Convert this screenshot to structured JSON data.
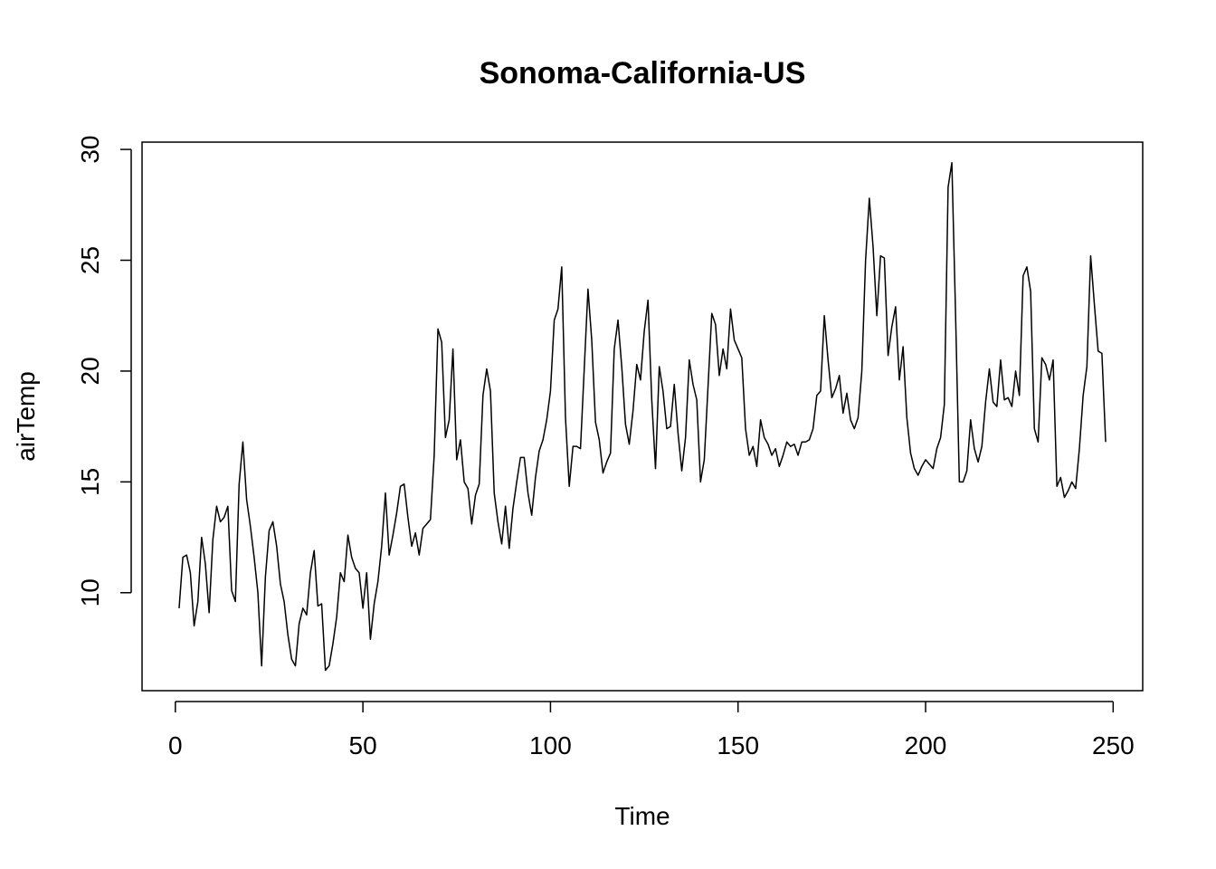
{
  "chart_data": {
    "type": "line",
    "title": "Sonoma-California-US",
    "x_label": "Time",
    "y_label": "airTemp",
    "x": [
      1,
      2,
      3,
      4,
      5,
      6,
      7,
      8,
      9,
      10,
      11,
      12,
      13,
      14,
      15,
      16,
      17,
      18,
      19,
      20,
      21,
      22,
      23,
      24,
      25,
      26,
      27,
      28,
      29,
      30,
      31,
      32,
      33,
      34,
      35,
      36,
      37,
      38,
      39,
      40,
      41,
      42,
      43,
      44,
      45,
      46,
      47,
      48,
      49,
      50,
      51,
      52,
      53,
      54,
      55,
      56,
      57,
      58,
      59,
      60,
      61,
      62,
      63,
      64,
      65,
      66,
      67,
      68,
      69,
      70,
      71,
      72,
      73,
      74,
      75,
      76,
      77,
      78,
      79,
      80,
      81,
      82,
      83,
      84,
      85,
      86,
      87,
      88,
      89,
      90,
      91,
      92,
      93,
      94,
      95,
      96,
      97,
      98,
      99,
      100,
      101,
      102,
      103,
      104,
      105,
      106,
      107,
      108,
      109,
      110,
      111,
      112,
      113,
      114,
      115,
      116,
      117,
      118,
      119,
      120,
      121,
      122,
      123,
      124,
      125,
      126,
      127,
      128,
      129,
      130,
      131,
      132,
      133,
      134,
      135,
      136,
      137,
      138,
      139,
      140,
      141,
      142,
      143,
      144,
      145,
      146,
      147,
      148,
      149,
      150,
      151,
      152,
      153,
      154,
      155,
      156,
      157,
      158,
      159,
      160,
      161,
      162,
      163,
      164,
      165,
      166,
      167,
      168,
      169,
      170,
      171,
      172,
      173,
      174,
      175,
      176,
      177,
      178,
      179,
      180,
      181,
      182,
      183,
      184,
      185,
      186,
      187,
      188,
      189,
      190,
      191,
      192,
      193,
      194,
      195,
      196,
      197,
      198,
      199,
      200,
      201,
      202,
      203,
      204,
      205,
      206,
      207,
      208,
      209,
      210,
      211,
      212,
      213,
      214,
      215,
      216,
      217,
      218,
      219,
      220,
      221,
      222,
      223,
      224,
      225,
      226,
      227,
      228,
      229,
      230,
      231,
      232,
      233,
      234,
      235,
      236,
      237,
      238,
      239,
      240,
      241,
      242,
      243,
      244,
      245,
      246,
      247,
      248
    ],
    "series": [
      {
        "name": "airTemp",
        "color": "#000000",
        "values": [
          9.3,
          11.6,
          11.7,
          10.9,
          8.5,
          9.6,
          12.5,
          11.3,
          9.1,
          12.4,
          13.9,
          13.2,
          13.4,
          13.9,
          10.1,
          9.6,
          14.9,
          16.8,
          14.2,
          13.0,
          11.6,
          10.0,
          6.7,
          10.7,
          12.8,
          13.2,
          12.1,
          10.4,
          9.6,
          8.1,
          7.0,
          6.7,
          8.6,
          9.3,
          9.0,
          10.9,
          11.9,
          9.4,
          9.5,
          6.5,
          6.7,
          7.7,
          8.9,
          10.9,
          10.5,
          12.6,
          11.6,
          11.1,
          10.9,
          9.3,
          10.9,
          7.9,
          9.5,
          10.5,
          12.1,
          14.5,
          11.7,
          12.6,
          13.6,
          14.8,
          14.9,
          13.4,
          12.1,
          12.7,
          11.7,
          12.9,
          13.1,
          13.3,
          16.2,
          21.9,
          21.3,
          17.0,
          17.8,
          21.0,
          16.0,
          16.9,
          15.0,
          14.7,
          13.1,
          14.4,
          14.9,
          18.9,
          20.1,
          19.1,
          14.5,
          13.2,
          12.2,
          13.9,
          12.0,
          13.8,
          15.0,
          16.1,
          16.1,
          14.5,
          13.5,
          15.2,
          16.4,
          16.9,
          17.8,
          19.1,
          22.3,
          22.8,
          24.7,
          17.9,
          14.8,
          16.6,
          16.6,
          16.5,
          20.1,
          23.7,
          21.4,
          17.7,
          16.9,
          15.4,
          15.9,
          16.3,
          21.0,
          22.3,
          20.2,
          17.6,
          16.7,
          18.2,
          20.3,
          19.6,
          21.8,
          23.2,
          18.7,
          15.6,
          20.2,
          19.1,
          17.4,
          17.5,
          19.4,
          17.2,
          15.5,
          17.0,
          20.5,
          19.4,
          18.7,
          15.0,
          16.0,
          19.3,
          22.6,
          22.1,
          19.8,
          21.0,
          20.1,
          22.8,
          21.4,
          21.0,
          20.6,
          17.4,
          16.2,
          16.6,
          15.7,
          17.8,
          17.0,
          16.7,
          16.2,
          16.5,
          15.7,
          16.2,
          16.8,
          16.6,
          16.7,
          16.2,
          16.8,
          16.8,
          16.9,
          17.4,
          18.9,
          19.1,
          22.5,
          20.5,
          18.8,
          19.2,
          19.8,
          18.1,
          19.0,
          17.8,
          17.4,
          17.9,
          20.0,
          25.0,
          27.8,
          25.6,
          22.5,
          25.2,
          25.1,
          20.7,
          22.0,
          22.9,
          19.6,
          21.1,
          17.9,
          16.3,
          15.6,
          15.3,
          15.7,
          16.0,
          15.8,
          15.6,
          16.5,
          17.0,
          18.5,
          28.3,
          29.4,
          22.5,
          15.0,
          15.0,
          15.5,
          17.8,
          16.5,
          15.9,
          16.6,
          18.6,
          20.1,
          18.6,
          18.4,
          20.5,
          18.7,
          18.8,
          18.4,
          20.0,
          18.9,
          24.3,
          24.7,
          23.6,
          17.4,
          16.8,
          20.6,
          20.3,
          19.6,
          20.5,
          14.8,
          15.2,
          14.3,
          14.6,
          15.0,
          14.7,
          16.5,
          18.9,
          20.2,
          25.2,
          23.0,
          20.9,
          20.8,
          16.8
        ]
      }
    ],
    "xlim": [
      -8.88,
      257.88
    ],
    "ylim": [
      5.58,
      30.33
    ],
    "xticks": [
      0,
      50,
      100,
      150,
      200,
      250
    ],
    "yticks": [
      10,
      15,
      20,
      25,
      30
    ]
  }
}
